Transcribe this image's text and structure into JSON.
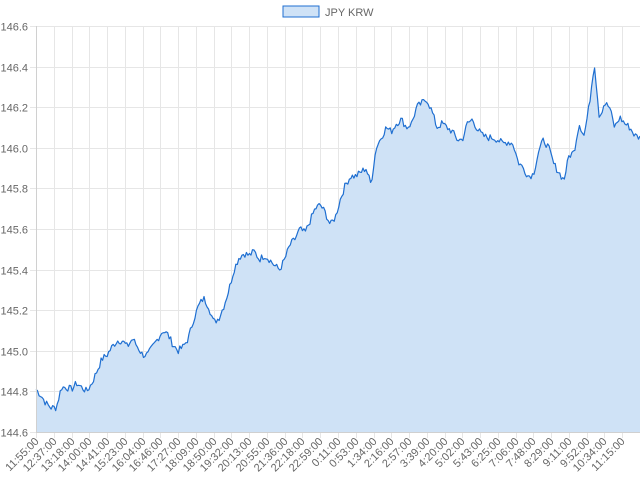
{
  "chart_data": {
    "type": "area",
    "legend": {
      "position": "top",
      "entries": [
        "JPY KRW"
      ]
    },
    "series": [
      {
        "name": "JPY KRW",
        "color": "#1f6fd1",
        "fill": "#cfe2f6",
        "x_count": 400,
        "values": [
          144.81,
          144.78,
          144.74,
          144.72,
          144.72,
          144.82,
          144.82,
          144.81,
          144.84,
          144.82,
          144.8,
          144.84,
          144.9,
          144.96,
          144.98,
          145.02,
          145.05,
          145.05,
          145.02,
          145.06,
          145.02,
          144.98,
          144.98,
          145.02,
          145.06,
          145.1,
          145.08,
          145.03,
          145.0,
          145.02,
          145.06,
          145.15,
          145.22,
          145.26,
          145.22,
          145.14,
          145.16,
          145.22,
          145.3,
          145.4,
          145.46,
          145.48,
          145.47,
          145.49,
          145.45,
          145.47,
          145.45,
          145.42,
          145.4,
          145.45,
          145.52,
          145.55,
          145.6,
          145.58,
          145.64,
          145.7,
          145.72,
          145.68,
          145.62,
          145.66,
          145.75,
          145.82,
          145.86,
          145.86,
          145.88,
          145.9,
          145.82,
          146.0,
          146.05,
          146.1,
          146.08,
          146.12,
          146.14,
          146.1,
          146.12,
          146.2,
          146.22,
          146.24,
          146.18,
          146.1,
          146.12,
          146.1,
          146.08,
          146.04,
          146.04,
          146.12,
          146.14,
          146.09,
          146.06,
          146.05,
          146.05,
          146.04,
          146.02,
          146.03,
          146.02,
          145.93,
          145.9,
          145.86,
          145.87,
          145.98,
          146.04,
          146.0,
          145.92,
          145.88,
          145.84,
          145.96,
          145.98,
          146.12,
          146.06,
          146.21,
          146.42,
          146.15,
          146.22,
          146.2,
          146.1,
          146.15,
          146.12,
          146.1,
          146.06,
          146.05
        ]
      }
    ],
    "x_tick_labels": [
      "11:55:00",
      "12:37:00",
      "13:18:00",
      "14:00:00",
      "14:41:00",
      "15:23:00",
      "16:04:00",
      "16:46:00",
      "17:27:00",
      "18:09:00",
      "18:50:00",
      "19:32:00",
      "20:13:00",
      "20:55:00",
      "21:36:00",
      "22:18:00",
      "22:59:00",
      "0:11:00",
      "0:53:00",
      "1:34:00",
      "2:16:00",
      "2:57:00",
      "3:39:00",
      "4:20:00",
      "5:02:00",
      "5:43:00",
      "6:25:00",
      "7:06:00",
      "7:48:00",
      "8:29:00",
      "9:11:00",
      "9:52:00",
      "10:34:00",
      "11:15:00"
    ],
    "y_ticks": [
      144.6,
      144.8,
      145.0,
      145.2,
      145.4,
      145.6,
      145.8,
      146.0,
      146.2,
      146.4,
      146.6
    ],
    "ylim": [
      144.6,
      146.6
    ],
    "grid": true
  }
}
